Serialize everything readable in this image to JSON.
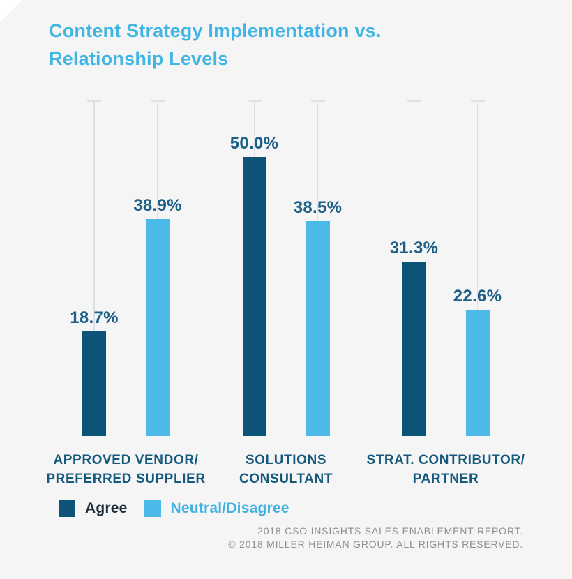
{
  "title": {
    "line1": "Content Strategy Implementation vs.",
    "line2": "Relationship Levels"
  },
  "chart_data": {
    "type": "bar",
    "title": "Content Strategy Implementation vs. Relationship Levels",
    "categories": [
      "Approved Vendor/ Preferred Supplier",
      "Solutions Consultant",
      "Strat. Contributor/ Partner"
    ],
    "category_label_lines": [
      [
        "APPROVED VENDOR/",
        "PREFERRED SUPPLIER"
      ],
      [
        "SOLUTIONS",
        "CONSULTANT"
      ],
      [
        "STRAT. CONTRIBUTOR/",
        "PARTNER"
      ]
    ],
    "series": [
      {
        "name": "Agree",
        "values": [
          18.7,
          50.0,
          31.3
        ],
        "labels": [
          "18.7%",
          "50.0%",
          "31.3%"
        ],
        "color": "#0d5377"
      },
      {
        "name": "Neutral/Disagree",
        "values": [
          38.9,
          38.5,
          22.6
        ],
        "labels": [
          "38.9%",
          "38.5%",
          "22.6%"
        ],
        "color": "#4bbae8"
      }
    ],
    "xlabel": "",
    "ylabel": "",
    "ylim": [
      0,
      60
    ],
    "grid": "vertical hairline with top tick cap above each bar",
    "legend_position": "bottom-left",
    "value_labels_shown": true
  },
  "legend": {
    "items": [
      {
        "label": "Agree",
        "swatch_color": "#0d5377",
        "text_color": "#1e2e3a"
      },
      {
        "label": "Neutral/Disagree",
        "swatch_color": "#4bbae8",
        "text_color": "#41b2e2"
      }
    ]
  },
  "footer": {
    "line1": "2018 CSO INSIGHTS SALES ENABLEMENT REPORT.",
    "line2": "© 2018 MILLER HEIMAN GROUP. ALL RIGHTS RESERVED."
  },
  "colors": {
    "background": "#f5f5f6",
    "title": "#41b5e3",
    "value_label": "#1d6086",
    "category_label": "#15597c",
    "hairline": "#dce1e6",
    "footer_text": "#8f8f8f"
  }
}
